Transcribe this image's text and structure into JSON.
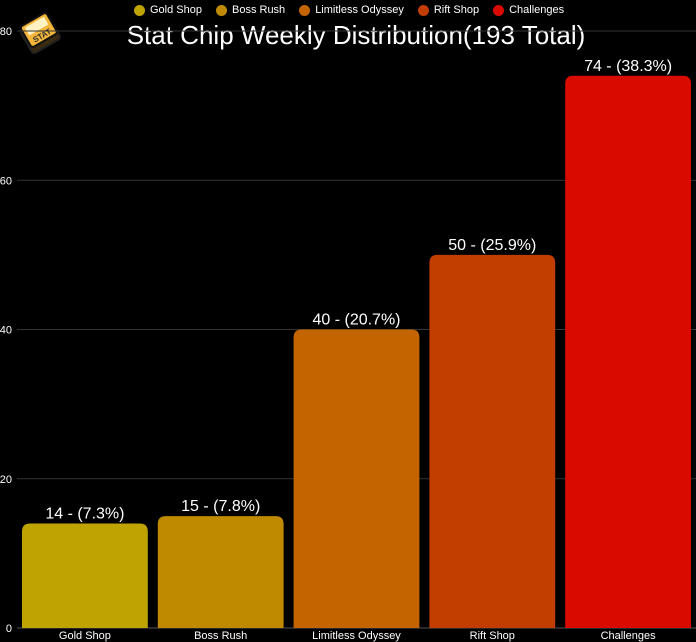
{
  "chart_data": {
    "type": "bar",
    "title": "Stat Chip Weekly Distribution(193 Total)",
    "categories": [
      "Gold Shop",
      "Boss Rush",
      "Limitless Odyssey",
      "Rift Shop",
      "Challenges"
    ],
    "values": [
      14,
      15,
      40,
      50,
      74
    ],
    "data_labels": [
      "14 - (7.3%)",
      "15 - (7.8%)",
      "40 - (20.7%)",
      "50 - (25.9%)",
      "74 - (38.3%)"
    ],
    "colors": [
      "#bfa300",
      "#c08a00",
      "#c46400",
      "#c23d00",
      "#d90a00"
    ],
    "ylim": [
      0,
      80
    ],
    "yticks": [
      0,
      20,
      40,
      60,
      80
    ],
    "grid": true,
    "legend_position": "top",
    "logo_text": "STAT"
  }
}
